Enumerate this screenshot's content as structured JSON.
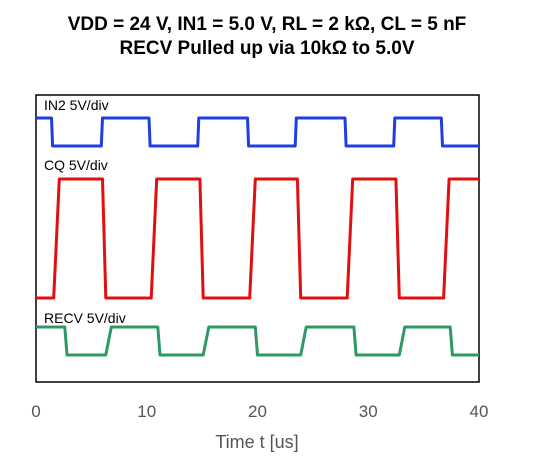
{
  "chart_data": {
    "type": "line",
    "title": "VDD = 24 V, IN1 = 5.0 V, RL = 2 kΩ, CL = 5 nF",
    "subtitle": "RECV Pulled up via 10kΩ to 5.0V",
    "xlabel": "Time t [us]",
    "xlim": [
      0,
      40
    ],
    "xticks": [
      "0",
      "10",
      "20",
      "30",
      "40"
    ],
    "grid": false,
    "series": [
      {
        "name": "IN2 5V/div",
        "color": "#1f3fe0",
        "levels": {
          "high": 1,
          "low": 0
        },
        "points": [
          [
            0,
            1
          ],
          [
            1.4,
            1
          ],
          [
            1.5,
            0
          ],
          [
            5.9,
            0
          ],
          [
            6.0,
            1
          ],
          [
            10.2,
            1
          ],
          [
            10.3,
            0
          ],
          [
            14.6,
            0
          ],
          [
            14.7,
            1
          ],
          [
            19.1,
            1
          ],
          [
            19.2,
            0
          ],
          [
            23.4,
            0
          ],
          [
            23.5,
            1
          ],
          [
            27.9,
            1
          ],
          [
            28.0,
            0
          ],
          [
            32.3,
            0
          ],
          [
            32.4,
            1
          ],
          [
            36.6,
            1
          ],
          [
            36.7,
            0
          ],
          [
            40,
            0
          ]
        ]
      },
      {
        "name": "CQ 5V/div",
        "color": "#e01010",
        "levels": {
          "high": 1,
          "low": 0
        },
        "points": [
          [
            0,
            0
          ],
          [
            1.6,
            0
          ],
          [
            2.1,
            1
          ],
          [
            6.0,
            1
          ],
          [
            6.3,
            0
          ],
          [
            10.4,
            0
          ],
          [
            10.9,
            1
          ],
          [
            14.8,
            1
          ],
          [
            15.1,
            0
          ],
          [
            19.3,
            0
          ],
          [
            19.8,
            1
          ],
          [
            23.6,
            1
          ],
          [
            23.9,
            0
          ],
          [
            28.1,
            0
          ],
          [
            28.6,
            1
          ],
          [
            32.5,
            1
          ],
          [
            32.8,
            0
          ],
          [
            36.8,
            0
          ],
          [
            37.3,
            1
          ],
          [
            40,
            1
          ]
        ]
      },
      {
        "name": "RECV 5V/div",
        "color": "#2e9966",
        "levels": {
          "high": 1,
          "low": 0
        },
        "points": [
          [
            0,
            1
          ],
          [
            2.6,
            1
          ],
          [
            2.8,
            0
          ],
          [
            6.3,
            0
          ],
          [
            6.8,
            1
          ],
          [
            11.0,
            1
          ],
          [
            11.2,
            0
          ],
          [
            15.1,
            0
          ],
          [
            15.6,
            1
          ],
          [
            19.8,
            1
          ],
          [
            20.0,
            0
          ],
          [
            23.9,
            0
          ],
          [
            24.4,
            1
          ],
          [
            28.7,
            1
          ],
          [
            28.9,
            0
          ],
          [
            32.8,
            0
          ],
          [
            33.3,
            1
          ],
          [
            37.4,
            1
          ],
          [
            37.6,
            0
          ],
          [
            40,
            0
          ]
        ]
      }
    ]
  }
}
